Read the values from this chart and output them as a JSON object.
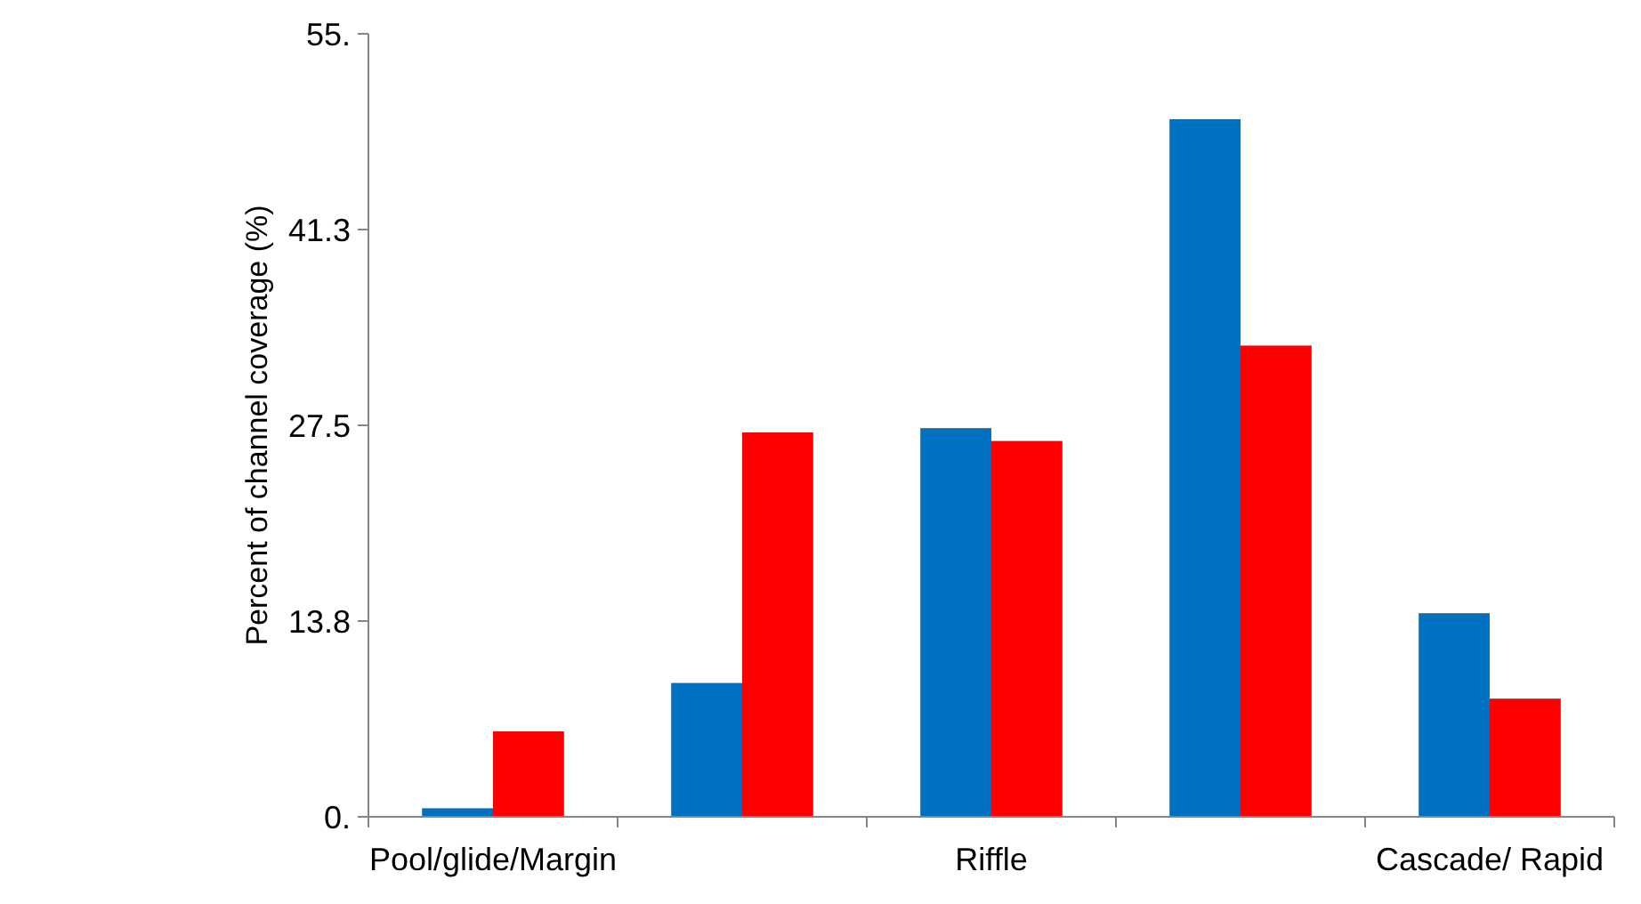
{
  "chart_data": {
    "type": "bar",
    "ylabel": "Percent of channel coverage (%)",
    "categories": [
      "Pool/glide/Margin",
      null,
      "Riffle",
      null,
      "Cascade/ Rapid"
    ],
    "series": [
      {
        "color": "#0070c0",
        "values": [
          0.6,
          9.4,
          27.3,
          49,
          14.3
        ]
      },
      {
        "color": "#ff0000",
        "values": [
          6,
          27,
          26.4,
          33.1,
          8.3
        ]
      }
    ],
    "ylim": [
      0,
      55
    ],
    "yticks": [
      {
        "value": 0,
        "label": "0."
      },
      {
        "value": 13.75,
        "label": "13.8"
      },
      {
        "value": 27.5,
        "label": "27.5"
      },
      {
        "value": 41.25,
        "label": "41.3"
      },
      {
        "value": 55,
        "label": "55."
      }
    ],
    "grid": false
  }
}
